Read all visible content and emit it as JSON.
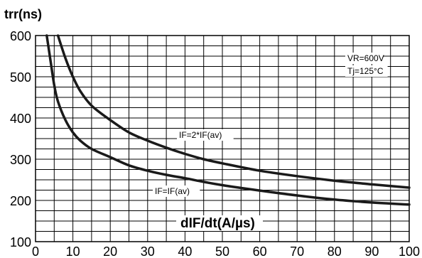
{
  "chart_data": {
    "type": "line",
    "ylabel": "trr(ns)",
    "xlabel": "dIF/dt(A/µs)",
    "xlim": [
      0,
      100
    ],
    "ylim": [
      100,
      600
    ],
    "x_ticks": [
      0,
      10,
      20,
      30,
      40,
      50,
      60,
      70,
      80,
      90,
      100
    ],
    "y_ticks": [
      100,
      200,
      300,
      400,
      500,
      600
    ],
    "grid": true,
    "conditions": [
      "VR=600V",
      "Tj=125°C"
    ],
    "series": [
      {
        "name": "IF=2*IF(av)",
        "x": [
          6,
          8,
          10,
          12,
          15,
          20,
          25,
          30,
          35,
          40,
          45,
          50,
          60,
          70,
          80,
          90,
          100
        ],
        "y": [
          600,
          545,
          500,
          465,
          430,
          395,
          365,
          345,
          328,
          313,
          300,
          290,
          272,
          259,
          248,
          239,
          231
        ]
      },
      {
        "name": "IF=IF(av)",
        "x": [
          3,
          4,
          5,
          6,
          8,
          10,
          12,
          15,
          20,
          25,
          30,
          35,
          40,
          45,
          50,
          60,
          70,
          80,
          90,
          100
        ],
        "y": [
          600,
          540,
          480,
          440,
          395,
          365,
          345,
          325,
          305,
          285,
          272,
          262,
          254,
          245,
          237,
          224,
          212,
          202,
          195,
          190
        ]
      }
    ]
  }
}
